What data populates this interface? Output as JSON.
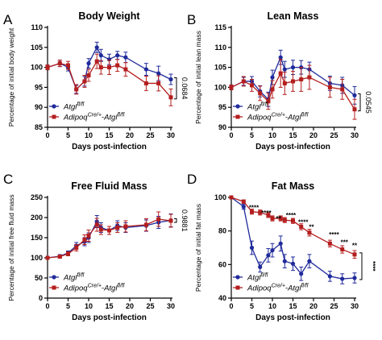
{
  "colors": {
    "series_a": "#1f2a9a",
    "series_b": "#b41e1e"
  },
  "chart_data": [
    {
      "type": "line",
      "panel_letter": "A",
      "title": "Body Weight",
      "xlabel": "Days post-infection",
      "ylabel": "Percentage of initial body weight",
      "xlim": [
        0,
        30
      ],
      "ylim": [
        85,
        110
      ],
      "xticks": [
        0,
        5,
        10,
        15,
        20,
        25,
        30
      ],
      "yticks": [
        85,
        90,
        95,
        100,
        105,
        110
      ],
      "pvalue": "0.0684",
      "series": [
        {
          "x": [
            0,
            3,
            5,
            7,
            9,
            10,
            12,
            13,
            15,
            17,
            19,
            24,
            27,
            30
          ],
          "y": [
            100,
            101,
            100,
            94.5,
            96.5,
            101,
            105,
            103,
            102,
            103,
            102.5,
            99.5,
            98.5,
            97
          ],
          "err": [
            0.6,
            0.8,
            0.9,
            1,
            1.2,
            1.2,
            1.3,
            1.5,
            1.3,
            1,
            1.3,
            1.5,
            1.8,
            1.3
          ]
        },
        {
          "x": [
            0,
            3,
            5,
            7,
            9,
            10,
            12,
            13,
            15,
            17,
            19,
            24,
            27,
            30
          ],
          "y": [
            100,
            101,
            100.5,
            94.5,
            96.5,
            98,
            101.5,
            100,
            100,
            100.5,
            99.5,
            96,
            96,
            92.5
          ],
          "err": [
            0.6,
            0.8,
            1,
            1.2,
            1.5,
            1.5,
            1.8,
            1.7,
            1.8,
            1.5,
            1.7,
            1.8,
            1.9,
            2.1
          ]
        }
      ]
    },
    {
      "type": "line",
      "panel_letter": "B",
      "title": "Lean Mass",
      "xlabel": "Days post-infection",
      "ylabel": "Percentage of initial lean mass",
      "xlim": [
        0,
        30
      ],
      "ylim": [
        90,
        115
      ],
      "xticks": [
        0,
        5,
        10,
        15,
        20,
        25,
        30
      ],
      "yticks": [
        90,
        95,
        100,
        105,
        110,
        115
      ],
      "pvalue": "0.0545",
      "series": [
        {
          "x": [
            0,
            3,
            5,
            7,
            9,
            10,
            12,
            13,
            15,
            17,
            19,
            24,
            27,
            30
          ],
          "y": [
            100,
            101.5,
            101.5,
            99,
            97,
            102.5,
            107.5,
            104.5,
            105,
            105,
            104.5,
            101,
            100.5,
            98
          ],
          "err": [
            0.6,
            1,
            1.2,
            1.4,
            1.8,
            1.8,
            1.8,
            2,
            1.8,
            1.7,
            1.8,
            1.8,
            2,
            2.2
          ]
        },
        {
          "x": [
            0,
            3,
            5,
            7,
            9,
            10,
            12,
            13,
            15,
            17,
            19,
            24,
            27,
            30
          ],
          "y": [
            100,
            101.5,
            100.5,
            98.5,
            96.5,
            99.5,
            103.5,
            101,
            101.5,
            102,
            102.5,
            100,
            99.5,
            94.5
          ],
          "err": [
            0.6,
            1.2,
            1.5,
            1.8,
            2,
            2.2,
            3.5,
            2.8,
            2.5,
            3,
            3,
            2.5,
            2.5,
            2.5
          ]
        }
      ]
    },
    {
      "type": "line",
      "panel_letter": "C",
      "title": "Free Fluid Mass",
      "xlabel": "Days post-infection",
      "ylabel": "Percentage of initial free fluid mass",
      "xlim": [
        0,
        30
      ],
      "ylim": [
        0,
        250
      ],
      "xticks": [
        0,
        5,
        10,
        15,
        20,
        25,
        30
      ],
      "yticks": [
        0,
        50,
        100,
        150,
        200,
        250
      ],
      "pvalue": "0.9881",
      "series": [
        {
          "x": [
            0,
            3,
            5,
            7,
            9,
            10,
            12,
            13,
            15,
            17,
            19,
            24,
            27,
            30
          ],
          "y": [
            100,
            104,
            112,
            130,
            140,
            150,
            190,
            175,
            168,
            180,
            175,
            180,
            188,
            193
          ],
          "err": [
            2,
            4,
            5,
            8,
            10,
            12,
            15,
            12,
            10,
            12,
            12,
            14,
            15,
            16
          ]
        },
        {
          "x": [
            0,
            3,
            5,
            7,
            9,
            10,
            12,
            13,
            15,
            17,
            19,
            24,
            27,
            30
          ],
          "y": [
            100,
            103,
            110,
            125,
            145,
            155,
            182,
            170,
            168,
            175,
            178,
            182,
            196,
            192
          ],
          "err": [
            2,
            4,
            5,
            8,
            12,
            14,
            16,
            12,
            10,
            12,
            14,
            15,
            18,
            16
          ]
        }
      ]
    },
    {
      "type": "line",
      "panel_letter": "D",
      "title": "Fat Mass",
      "xlabel": "Days post-infection",
      "ylabel": "Percentage of initial fat mass",
      "xlim": [
        0,
        30
      ],
      "ylim": [
        40,
        100
      ],
      "xticks": [
        0,
        5,
        10,
        15,
        20,
        25,
        30
      ],
      "yticks": [
        40,
        60,
        80,
        100
      ],
      "pvalue": "****",
      "annotations": [
        {
          "x": 5.5,
          "y": 92.5,
          "label": "****"
        },
        {
          "x": 8.5,
          "y": 89.5,
          "label": "****"
        },
        {
          "x": 11.5,
          "y": 86,
          "label": "**"
        },
        {
          "x": 14.5,
          "y": 88,
          "label": "****"
        },
        {
          "x": 17.5,
          "y": 84,
          "label": "****"
        },
        {
          "x": 19.5,
          "y": 81,
          "label": "**"
        },
        {
          "x": 25,
          "y": 76.5,
          "label": "****"
        },
        {
          "x": 27.5,
          "y": 72,
          "label": "***"
        },
        {
          "x": 30,
          "y": 70,
          "label": "**"
        }
      ],
      "series": [
        {
          "x": [
            0,
            3,
            5,
            7,
            9,
            10,
            12,
            13,
            15,
            17,
            19,
            24,
            27,
            30
          ],
          "y": [
            100,
            94.5,
            70,
            58.5,
            65.5,
            68.5,
            72.5,
            62,
            60.5,
            54.5,
            62,
            53,
            51.5,
            52
          ],
          "err": [
            0.5,
            1.5,
            4,
            3,
            4,
            4,
            4.5,
            4,
            4,
            4,
            4,
            3,
            3,
            3
          ]
        },
        {
          "x": [
            0,
            3,
            5,
            7,
            9,
            10,
            12,
            13,
            15,
            17,
            19,
            24,
            27,
            30
          ],
          "y": [
            100,
            97.5,
            91.5,
            91,
            89.5,
            87.5,
            87.5,
            86.5,
            86,
            82.5,
            79,
            72.5,
            69,
            66
          ],
          "err": [
            0.5,
            1,
            1.5,
            1.5,
            1.5,
            1.5,
            1.5,
            1.5,
            1.5,
            1.8,
            2,
            2,
            2.2,
            2.3
          ]
        }
      ]
    }
  ],
  "legend": {
    "a": {
      "base": "Atgl",
      "sup": "fl/fl"
    },
    "b": {
      "base": "Adipoq",
      "sup1": "Cre/+",
      "mid": "-Atgl",
      "sup2": "fl/fl"
    }
  }
}
